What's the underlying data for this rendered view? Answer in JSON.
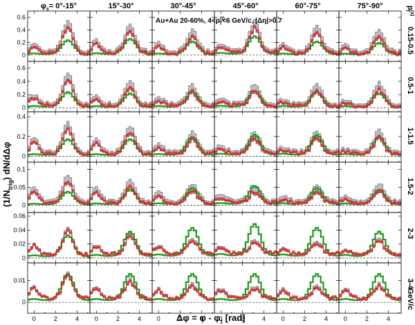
{
  "figure": {
    "annotation": "Au+Au 20-60%, 4<p",
    "annotation_sup": "(t)",
    "annotation_sub": "T",
    "annotation_rest": "<6 GeV/c, |Δη|>0.7"
  },
  "chart_data": {
    "type": "line",
    "title": "",
    "subtitle": "",
    "xlabel": "Δφ = φ - φ",
    "xlabel_sub": "t",
    "xlabel_unit": "[rad]",
    "ylabel": "(1/N",
    "ylabel_sub": "trig",
    "ylabel_rest": ") dN/dΔφ",
    "xlim": [
      -0.6,
      5.2
    ],
    "xticks": [
      "0",
      "2",
      "4"
    ],
    "column_prefix": "φ",
    "column_prefix_sub": "s",
    "column_prefix_eq": "=",
    "columns": [
      "0°-15°",
      "15°-30°",
      "30°-45°",
      "45°-60°",
      "60°-75°",
      "75°-90°"
    ],
    "row_header": "p",
    "row_header_sup": "(a)",
    "row_header_sub": "T",
    "row_unit": "GeV/c",
    "rows": [
      {
        "label": "0.15-0.5",
        "ylim": [
          -0.1,
          0.7
        ],
        "yticks": [
          "0",
          "0.2",
          "0.4",
          "0.6"
        ],
        "ytick_values": [
          0,
          0.2,
          0.4,
          0.6
        ]
      },
      {
        "label": "0.5-1",
        "ylim": [
          -0.06,
          0.7
        ],
        "yticks": [
          "0",
          "0.2",
          "0.4",
          "0.6"
        ],
        "ytick_values": [
          0,
          0.2,
          0.4,
          0.6
        ]
      },
      {
        "label": "1-1.5",
        "ylim": [
          -0.06,
          0.45
        ],
        "yticks": [
          "0",
          "0.2",
          "0.4"
        ],
        "ytick_values": [
          0,
          0.2,
          0.4
        ]
      },
      {
        "label": "1.5-2",
        "ylim": [
          -0.02,
          0.12
        ],
        "yticks": [
          "0",
          "0.05",
          "0.1"
        ],
        "ytick_values": [
          0,
          0.05,
          0.1
        ]
      },
      {
        "label": "2-3",
        "ylim": [
          -0.007,
          0.065
        ],
        "yticks": [
          "0",
          "0.02",
          "0.04",
          "0.06"
        ],
        "ytick_values": [
          0,
          0.02,
          0.04,
          0.06
        ]
      },
      {
        "label": "3-4",
        "ylim": [
          -0.005,
          0.018
        ],
        "yticks": [
          "0",
          "0.01"
        ],
        "ytick_values": [
          0,
          0.01
        ]
      }
    ],
    "near_side_amplitude": [
      [
        0.1,
        0.12,
        0.1,
        0.08,
        0.08,
        0.08
      ],
      [
        0.1,
        0.09,
        0.07,
        0.05,
        0.04,
        0.03
      ],
      [
        0.1,
        0.09,
        0.06,
        0.04,
        0.03,
        0.02
      ],
      [
        0.028,
        0.025,
        0.018,
        0.012,
        0.01,
        0.008
      ],
      [
        0.012,
        0.01,
        0.008,
        0.006,
        0.005,
        0.004
      ],
      [
        0.004,
        0.004,
        0.003,
        0.003,
        0.003,
        0.003
      ]
    ],
    "away_side_data": [
      [
        0.4,
        0.32,
        0.24,
        0.38,
        0.3,
        0.26
      ],
      [
        0.38,
        0.26,
        0.2,
        0.2,
        0.22,
        0.24
      ],
      [
        0.24,
        0.2,
        0.14,
        0.14,
        0.16,
        0.16
      ],
      [
        0.055,
        0.04,
        0.032,
        0.028,
        0.03,
        0.034
      ],
      [
        0.035,
        0.024,
        0.018,
        0.014,
        0.014,
        0.018
      ],
      [
        0.01,
        0.007,
        0.005,
        0.004,
        0.004,
        0.005
      ]
    ],
    "background_model": [
      [
        0.22,
        0.24,
        0.2,
        0.28,
        0.2,
        0.18
      ],
      [
        0.22,
        0.2,
        0.22,
        0.24,
        0.22,
        0.2
      ],
      [
        0.16,
        0.16,
        0.18,
        0.2,
        0.2,
        0.18
      ],
      [
        0.035,
        0.04,
        0.045,
        0.05,
        0.045,
        0.04
      ],
      [
        0.03,
        0.035,
        0.04,
        0.045,
        0.04,
        0.035
      ],
      [
        0.012,
        0.012,
        0.012,
        0.012,
        0.012,
        0.012
      ]
    ],
    "series": [
      {
        "name": "",
        "color": "#d00000"
      },
      {
        "name": "",
        "color": "#1a9a1a"
      },
      {
        "name": "",
        "color": "#b9c0c8"
      }
    ],
    "grid": false,
    "legend": "none"
  }
}
